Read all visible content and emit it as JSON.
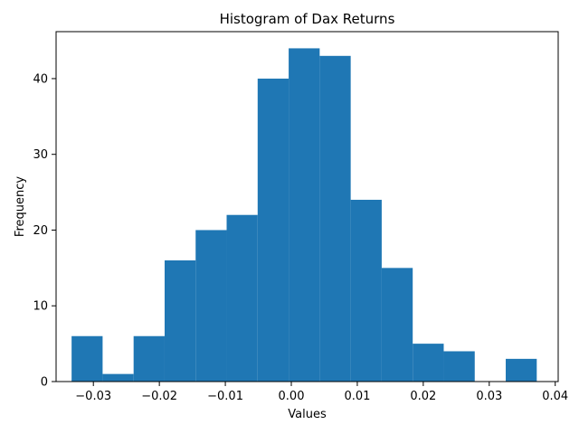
{
  "chart_data": {
    "type": "bar",
    "title": "Histogram of Dax Returns",
    "xlabel": "Values",
    "ylabel": "Frequency",
    "bar_color": "#1f77b4",
    "bins": [
      {
        "x0": -0.0333,
        "x1": -0.0286,
        "count": 6
      },
      {
        "x0": -0.0286,
        "x1": -0.0239,
        "count": 1
      },
      {
        "x0": -0.0239,
        "x1": -0.0192,
        "count": 6
      },
      {
        "x0": -0.0192,
        "x1": -0.0145,
        "count": 16
      },
      {
        "x0": -0.0145,
        "x1": -0.0098,
        "count": 20
      },
      {
        "x0": -0.0098,
        "x1": -0.0051,
        "count": 22
      },
      {
        "x0": -0.0051,
        "x1": -0.0004,
        "count": 40
      },
      {
        "x0": -0.0004,
        "x1": 0.0043,
        "count": 44
      },
      {
        "x0": 0.0043,
        "x1": 0.009,
        "count": 43
      },
      {
        "x0": 0.009,
        "x1": 0.0137,
        "count": 24
      },
      {
        "x0": 0.0137,
        "x1": 0.0184,
        "count": 15
      },
      {
        "x0": 0.0184,
        "x1": 0.0231,
        "count": 5
      },
      {
        "x0": 0.0231,
        "x1": 0.0278,
        "count": 4
      },
      {
        "x0": 0.0278,
        "x1": 0.0325,
        "count": 0
      },
      {
        "x0": 0.0325,
        "x1": 0.0372,
        "count": 3
      }
    ],
    "xlim": [
      -0.03565,
      0.04045
    ],
    "ylim": [
      0,
      46.2
    ],
    "x_ticks": [
      {
        "value": -0.03,
        "label": "−0.03"
      },
      {
        "value": -0.02,
        "label": "−0.02"
      },
      {
        "value": -0.01,
        "label": "−0.01"
      },
      {
        "value": 0.0,
        "label": "0.00"
      },
      {
        "value": 0.01,
        "label": "0.01"
      },
      {
        "value": 0.02,
        "label": "0.02"
      },
      {
        "value": 0.03,
        "label": "0.03"
      },
      {
        "value": 0.04,
        "label": "0.04"
      }
    ],
    "y_ticks": [
      {
        "value": 0,
        "label": "0"
      },
      {
        "value": 10,
        "label": "10"
      },
      {
        "value": 20,
        "label": "20"
      },
      {
        "value": 30,
        "label": "30"
      },
      {
        "value": 40,
        "label": "40"
      }
    ],
    "grid": false,
    "legend": "none"
  }
}
